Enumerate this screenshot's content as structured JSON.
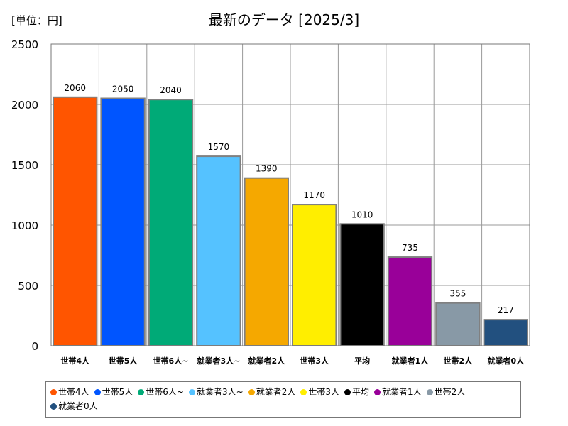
{
  "chart_data": {
    "type": "bar",
    "title": "最新のデータ [2025/3]",
    "unit_label": "[単位：円]",
    "ylim": [
      0,
      2500
    ],
    "yticks": [
      0,
      500,
      1000,
      1500,
      2000,
      2500
    ],
    "grid": true,
    "legend_position": "bottom",
    "categories": [
      "世帯4人",
      "世帯5人",
      "世帯6人~",
      "就業者3人~",
      "就業者2人",
      "世帯3人",
      "平均",
      "就業者1人",
      "世帯2人",
      "就業者0人"
    ],
    "values": [
      2060,
      2050,
      2040,
      1570,
      1390,
      1170,
      1010,
      735,
      355,
      217
    ],
    "colors": [
      "#ff5500",
      "#0055ff",
      "#00aa77",
      "#55c2ff",
      "#f5a800",
      "#ffee00",
      "#000000",
      "#990099",
      "#8899a6",
      "#22507f"
    ],
    "legend": [
      "世帯4人",
      "世帯5人",
      "世帯6人~",
      "就業者3人~",
      "就業者2人",
      "世帯3人",
      "平均",
      "就業者1人",
      "世帯2人",
      "就業者0人"
    ]
  }
}
